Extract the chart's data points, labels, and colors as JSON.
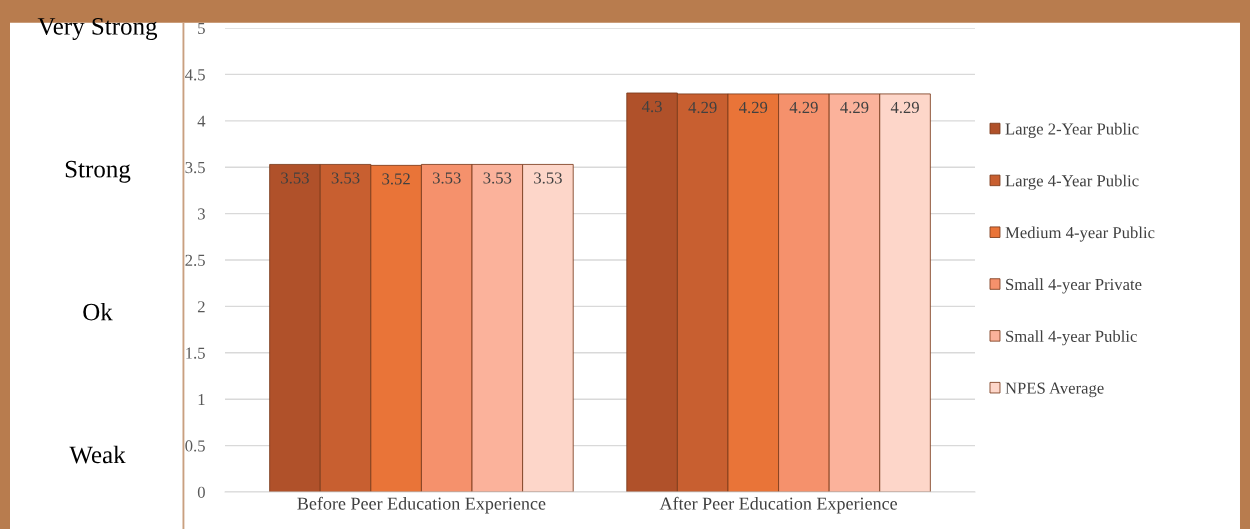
{
  "chart_data": {
    "type": "bar",
    "categories": [
      "Before Peer Education Experience",
      "After Peer Education Experience"
    ],
    "series": [
      {
        "name": "Large 2-Year Public",
        "color": "#b0512a",
        "values": [
          3.53,
          4.3
        ]
      },
      {
        "name": "Large 4-Year Public",
        "color": "#c85f30",
        "values": [
          3.53,
          4.29
        ]
      },
      {
        "name": "Medium 4-year Public",
        "color": "#e97438",
        "values": [
          3.52,
          4.29
        ]
      },
      {
        "name": "Small 4-year Private",
        "color": "#f5916c",
        "values": [
          3.53,
          4.29
        ]
      },
      {
        "name": "Small 4-year Public",
        "color": "#fbb29b",
        "values": [
          3.53,
          4.29
        ]
      },
      {
        "name": "NPES Average",
        "color": "#fdd6c9",
        "values": [
          3.53,
          4.29
        ]
      }
    ],
    "ylim": [
      0,
      5
    ],
    "yticks": [
      0,
      0.5,
      1,
      1.5,
      2,
      2.5,
      3,
      3.5,
      4,
      4.5,
      5
    ],
    "grid": "y",
    "legend": "right",
    "data_labels": true,
    "annotations": [
      "Very Strong",
      "Strong",
      "Ok",
      "Weak"
    ]
  }
}
